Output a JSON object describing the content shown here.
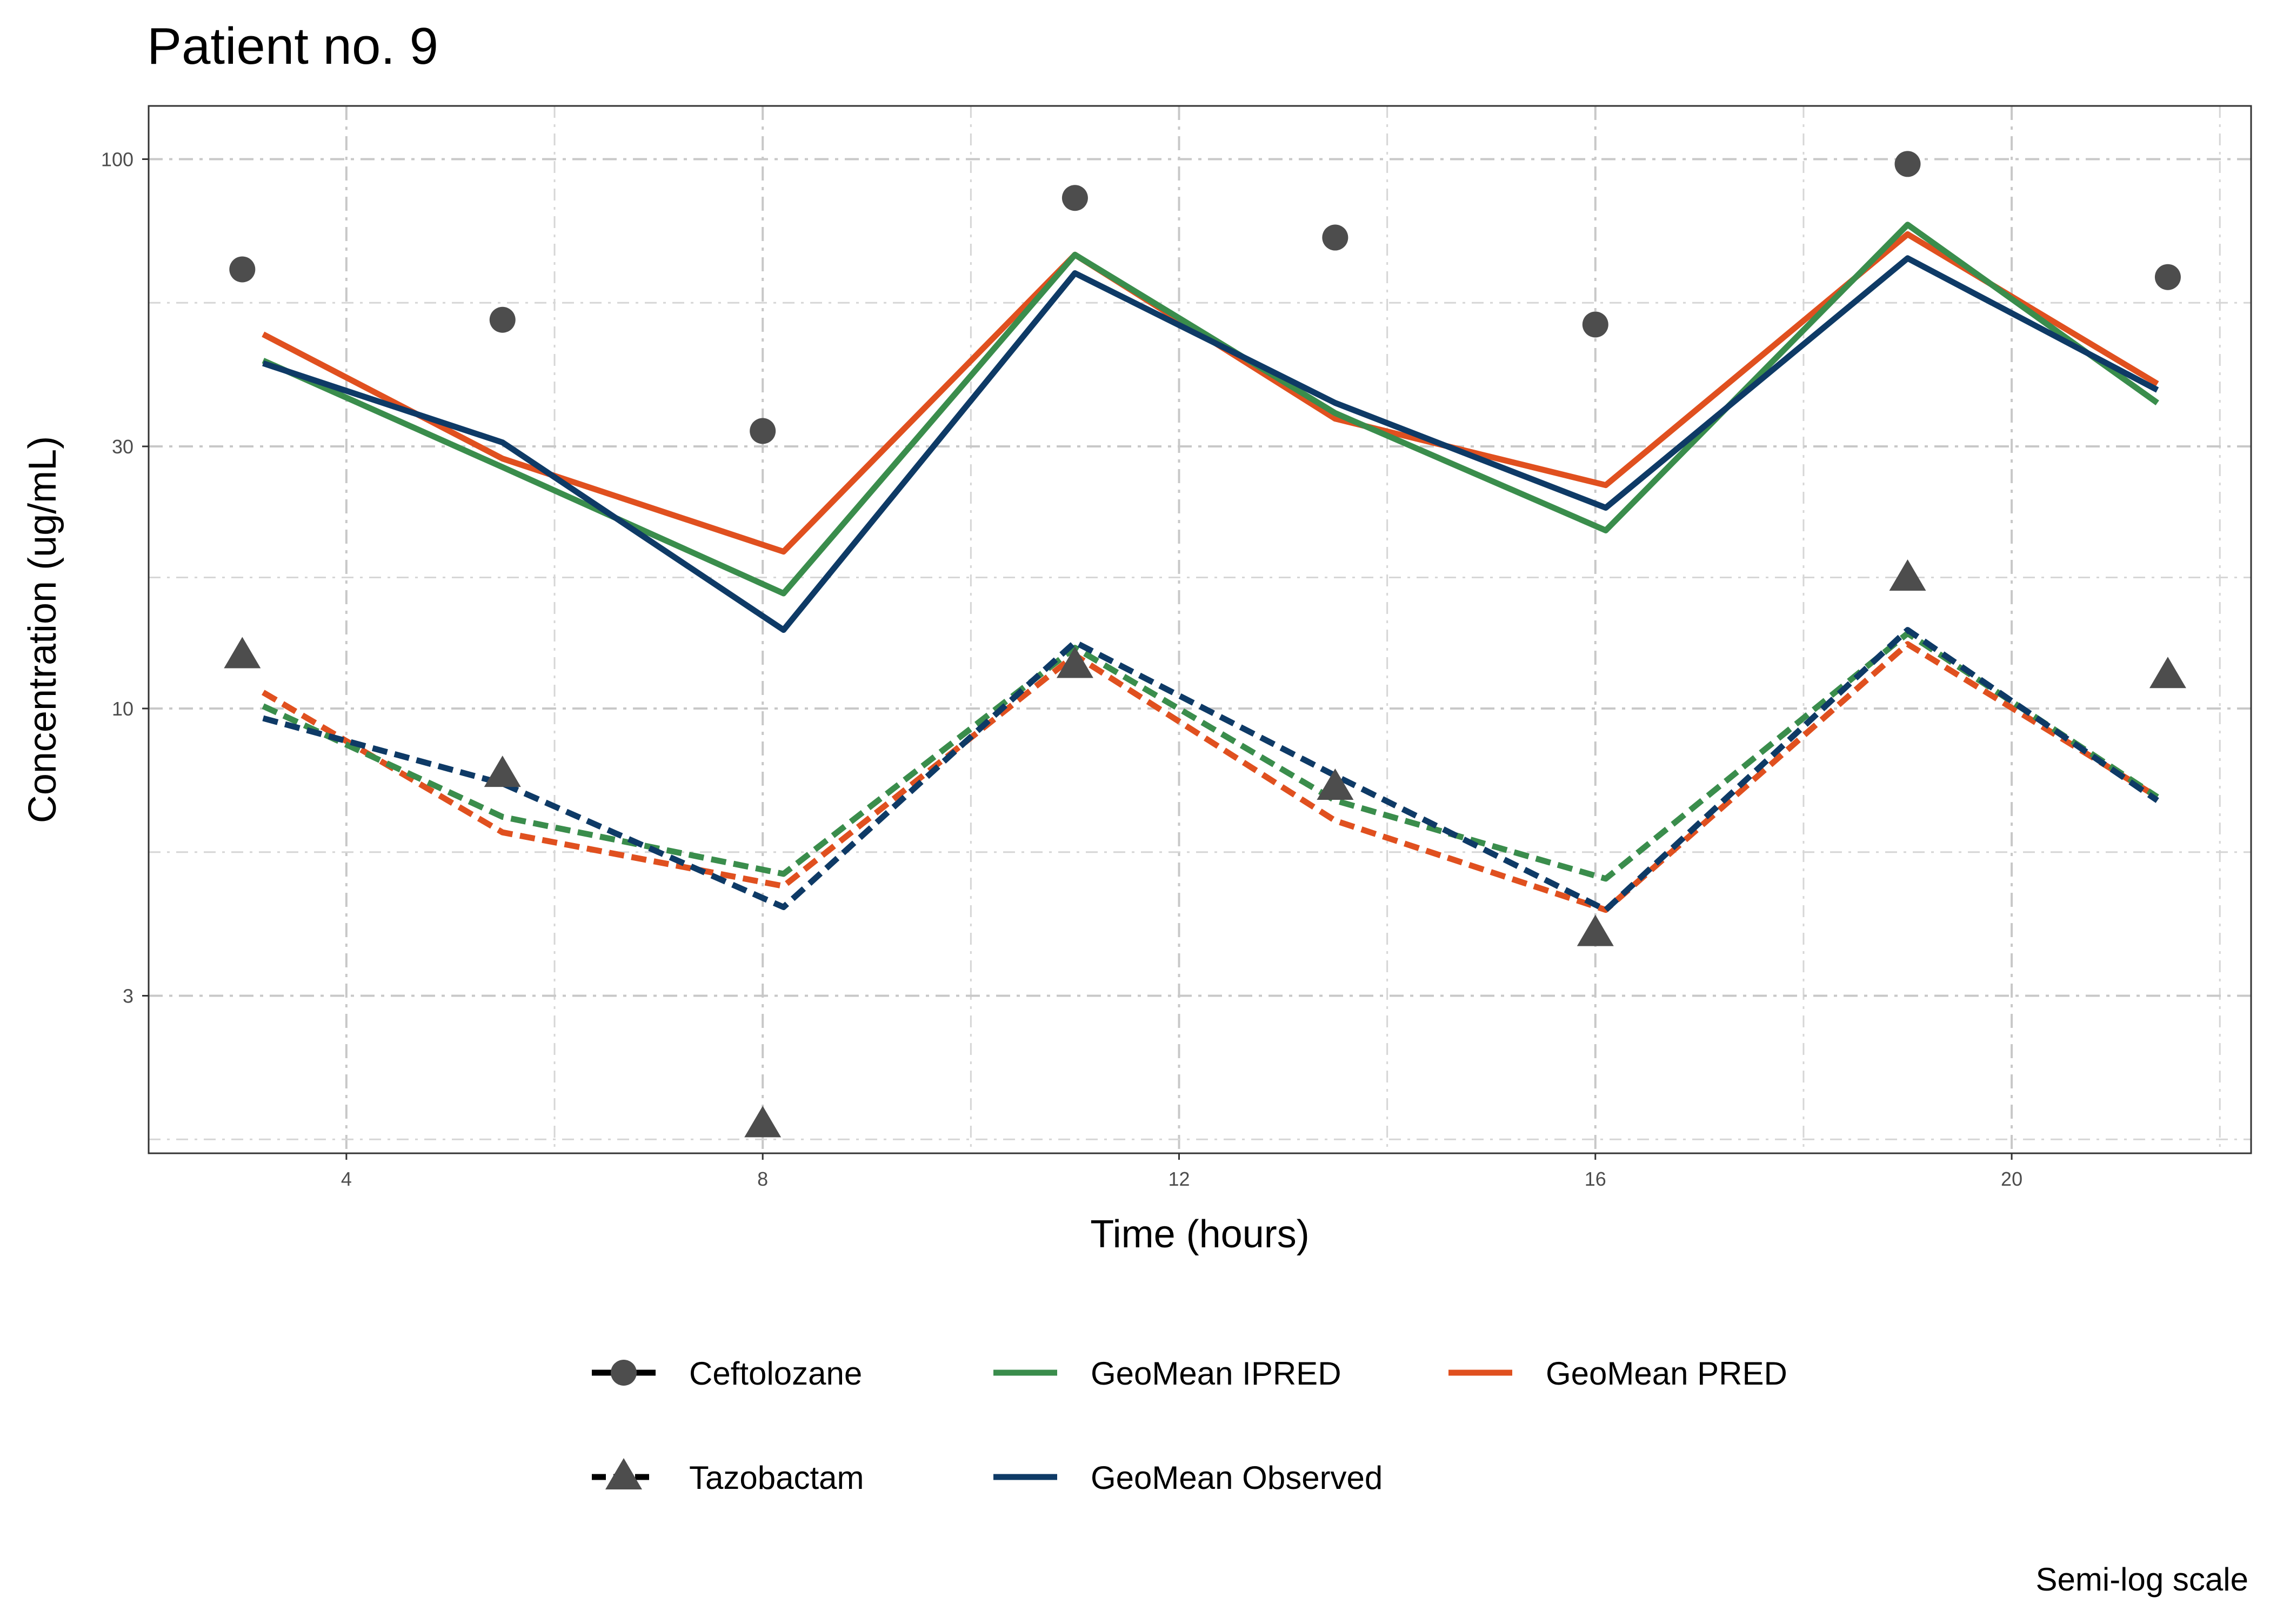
{
  "chart_data": {
    "type": "line",
    "title": "Patient no. 9",
    "xlabel": "Time (hours)",
    "ylabel": "Concentration (ug/mL)",
    "caption": "Semi-log scale",
    "x_scale": "linear",
    "y_scale": "log",
    "xlim": [
      2.1,
      22.3
    ],
    "ylim": [
      1.55,
      125
    ],
    "x_ticks": [
      4,
      8,
      12,
      16,
      20
    ],
    "x_tick_labels": [
      "4",
      "8",
      "12",
      "16",
      "20"
    ],
    "y_ticks": [
      3,
      10,
      30,
      100
    ],
    "y_tick_labels": [
      "3",
      "10",
      "30",
      "100"
    ],
    "grid": true,
    "legend_position": "bottom",
    "legend": {
      "shapes": [
        {
          "label": "Ceftolozane",
          "marker": "circle",
          "linetype": "solid"
        },
        {
          "label": "Tazobactam",
          "marker": "triangle",
          "linetype": "dashed"
        }
      ],
      "colors": [
        {
          "label": "GeoMean IPRED",
          "color": "#3a8d4c"
        },
        {
          "label": "GeoMean Observed",
          "color": "#0e3a66"
        },
        {
          "label": "GeoMean PRED",
          "color": "#e0501f"
        }
      ]
    },
    "observations": [
      {
        "name": "Ceftolozane",
        "marker": "circle",
        "color": "#4d4d4d",
        "x": [
          3.0,
          5.5,
          8.0,
          11.0,
          13.5,
          16.0,
          19.0,
          21.5
        ],
        "y": [
          63,
          51,
          32,
          85,
          72,
          50,
          98,
          61
        ]
      },
      {
        "name": "Tazobactam",
        "marker": "triangle",
        "color": "#4d4d4d",
        "x": [
          3.0,
          5.5,
          8.0,
          11.0,
          13.5,
          16.0,
          19.0,
          21.5
        ],
        "y": [
          12.5,
          7.6,
          1.75,
          12.0,
          7.2,
          3.9,
          17.3,
          11.5
        ]
      }
    ],
    "series": [
      {
        "name": "GeoMean PRED",
        "drug": "Ceftolozane",
        "color": "#e0501f",
        "linetype": "solid",
        "x": [
          3.2,
          5.5,
          8.2,
          11.0,
          13.5,
          16.1,
          19.0,
          21.4
        ],
        "y": [
          48,
          28.5,
          19.3,
          67,
          33.7,
          25.5,
          73,
          39
        ]
      },
      {
        "name": "GeoMean IPRED",
        "drug": "Ceftolozane",
        "color": "#3a8d4c",
        "linetype": "solid",
        "x": [
          3.2,
          5.5,
          8.2,
          11.0,
          13.5,
          16.1,
          19.0,
          21.4
        ],
        "y": [
          43,
          27.5,
          16.2,
          67,
          34.5,
          21.1,
          76,
          36
        ]
      },
      {
        "name": "GeoMean Observed",
        "drug": "Ceftolozane",
        "color": "#0e3a66",
        "linetype": "solid",
        "x": [
          3.2,
          5.5,
          8.2,
          11.0,
          13.5,
          16.1,
          19.0,
          21.4
        ],
        "y": [
          42.5,
          30.5,
          13.9,
          62,
          36,
          23.2,
          66,
          38
        ]
      },
      {
        "name": "GeoMean PRED",
        "drug": "Tazobactam",
        "color": "#e0501f",
        "linetype": "dashed",
        "x": [
          3.2,
          5.5,
          8.2,
          11.0,
          13.5,
          16.1,
          19.0,
          21.4
        ],
        "y": [
          10.7,
          5.95,
          4.75,
          12.5,
          6.25,
          4.3,
          13.1,
          6.9
        ]
      },
      {
        "name": "GeoMean IPRED",
        "drug": "Tazobactam",
        "color": "#3a8d4c",
        "linetype": "dashed",
        "x": [
          3.2,
          5.5,
          8.2,
          11.0,
          13.5,
          16.1,
          19.0,
          21.4
        ],
        "y": [
          10.1,
          6.35,
          5.0,
          12.9,
          6.8,
          4.9,
          13.7,
          6.9
        ]
      },
      {
        "name": "GeoMean Observed",
        "drug": "Tazobactam",
        "color": "#0e3a66",
        "linetype": "dashed",
        "x": [
          3.2,
          5.5,
          8.2,
          11.0,
          13.5,
          16.1,
          19.0,
          21.4
        ],
        "y": [
          9.6,
          7.3,
          4.35,
          13.2,
          7.55,
          4.3,
          13.9,
          6.8
        ]
      }
    ]
  }
}
